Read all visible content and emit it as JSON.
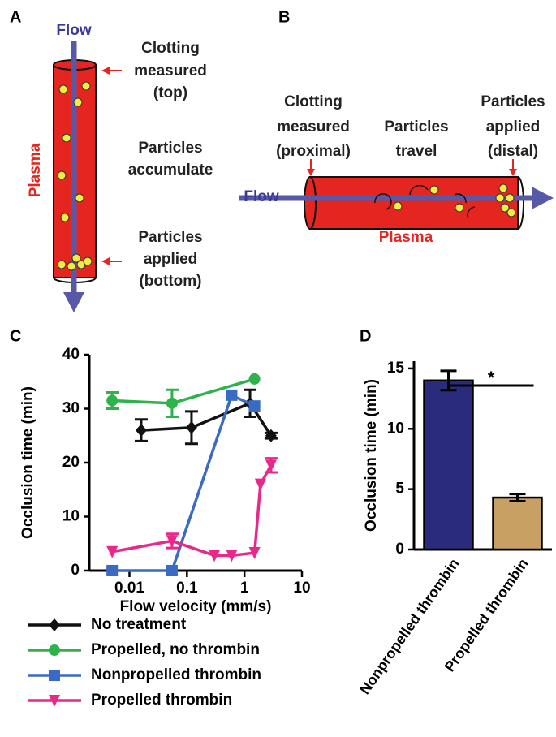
{
  "panel_letters": [
    "A",
    "B",
    "C",
    "D"
  ],
  "diagram_a": {
    "flow": "Flow",
    "plasma": "Plasma",
    "labels": [
      {
        "lines": [
          "Clotting",
          "measured",
          "(top)"
        ]
      },
      {
        "lines": [
          "Particles",
          "accumulate"
        ]
      },
      {
        "lines": [
          "Particles",
          "applied",
          "(bottom)"
        ]
      }
    ]
  },
  "diagram_b": {
    "flow": "Flow",
    "plasma": "Plasma",
    "labels": [
      {
        "lines": [
          "Clotting",
          "measured",
          "(proximal)"
        ]
      },
      {
        "lines": [
          "Particles",
          "travel"
        ]
      },
      {
        "lines": [
          "Particles",
          "applied",
          "(distal)"
        ]
      }
    ]
  },
  "chart_data": [
    {
      "type": "line",
      "xlabel": "Flow velocity (mm/s)",
      "ylabel": "Occlusion time  (min)",
      "xscale": "log",
      "xlim": [
        0.002,
        10
      ],
      "xticks": [
        0.01,
        0.1,
        1,
        10
      ],
      "ylim": [
        0,
        40
      ],
      "yticks": [
        0,
        10,
        20,
        30,
        40
      ],
      "series": [
        {
          "name": "No treatment",
          "color": "#111111",
          "marker": "diamond",
          "x": [
            0.016,
            0.12,
            1.25,
            2.9
          ],
          "values": [
            26,
            26.5,
            31,
            25
          ],
          "errors": [
            2,
            3,
            2.5,
            0.5
          ]
        },
        {
          "name": "Propelled, no thrombin",
          "color": "#2db34a",
          "marker": "circle",
          "x": [
            0.005,
            0.055,
            1.5
          ],
          "values": [
            31.5,
            31,
            35.5
          ],
          "errors": [
            1.5,
            2.5,
            null
          ]
        },
        {
          "name": "Nonpropelled thrombin",
          "color": "#3a6bc4",
          "marker": "square",
          "x": [
            0.005,
            0.055,
            0.6,
            1.5
          ],
          "values": [
            0,
            0,
            32.5,
            30.5
          ],
          "errors": [
            null,
            null,
            null,
            null
          ]
        },
        {
          "name": "Propelled thrombin",
          "color": "#e8288a",
          "marker": "triangle-down",
          "x": [
            0.005,
            0.055,
            0.3,
            0.6,
            1.5,
            1.9,
            2.9
          ],
          "values": [
            3.5,
            5.5,
            2.8,
            2.8,
            3.3,
            16,
            19.5
          ],
          "errors": [
            null,
            1.3,
            null,
            null,
            null,
            null,
            1.3
          ]
        }
      ]
    },
    {
      "type": "bar",
      "ylabel": "Occlusion time (min)",
      "categories": [
        "Nonpropelled thrombin",
        "Propelled thrombin"
      ],
      "values": [
        14,
        4.3
      ],
      "errors": [
        0.8,
        0.3
      ],
      "colors": [
        "#2b2b7e",
        "#c9a063"
      ],
      "ylim": [
        0,
        15.6
      ],
      "yticks": [
        0,
        5,
        10,
        15
      ],
      "significance": "*"
    }
  ]
}
